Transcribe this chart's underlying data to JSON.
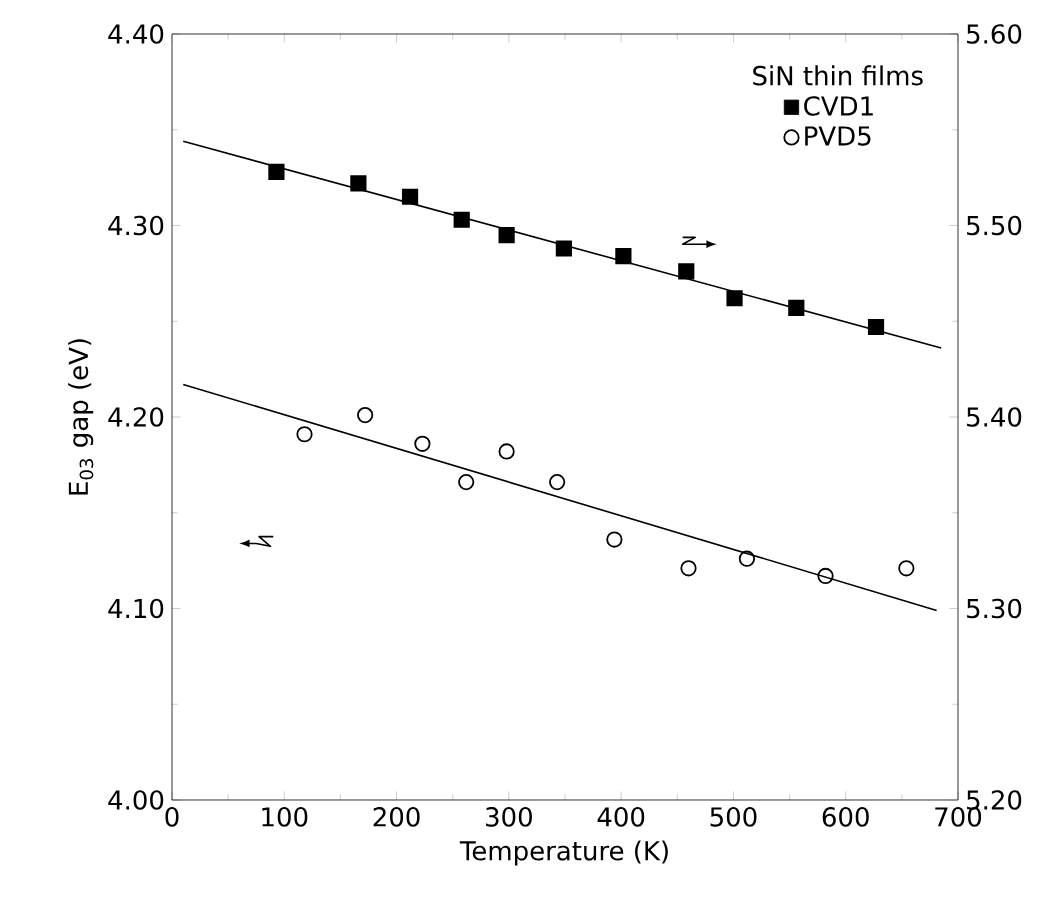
{
  "chart_data": {
    "type": "scatter",
    "xlabel": "Temperature (K)",
    "ylabel": "E$_{03}$ gap (eV)",
    "legend_title": "SiN thin films",
    "legend": "top right",
    "xlim": [
      0,
      700
    ],
    "xticks": [
      0,
      100,
      200,
      300,
      400,
      500,
      600,
      700
    ],
    "ylim": [
      4.0,
      4.4
    ],
    "yticks": [
      {
        "value": 4.0,
        "label": "4.00"
      },
      {
        "value": 4.1,
        "label": "4.10"
      },
      {
        "value": 4.2,
        "label": "4.20"
      },
      {
        "value": 4.3,
        "label": "4.30"
      },
      {
        "value": 4.4,
        "label": "4.40"
      }
    ],
    "y2lim": [
      5.2,
      5.6
    ],
    "y2ticks": [
      {
        "value": 5.2,
        "label": "5.20"
      },
      {
        "value": 5.3,
        "label": "5.30"
      },
      {
        "value": 5.4,
        "label": "5.40"
      },
      {
        "value": 5.5,
        "label": "5.50"
      },
      {
        "value": 5.6,
        "label": "5.60"
      }
    ],
    "series": [
      {
        "name": "CVD1",
        "axis": "y2",
        "marker": "square",
        "color": "#000000",
        "x": [
          93,
          166,
          212,
          258,
          298,
          349,
          402,
          458,
          501,
          556,
          627
        ],
        "values": [
          5.528,
          5.522,
          5.515,
          5.503,
          5.495,
          5.488,
          5.484,
          5.476,
          5.462,
          5.457,
          5.447
        ]
      },
      {
        "name": "PVD5",
        "marker": "circle",
        "color": "#000000",
        "x": [
          118,
          172,
          223,
          262,
          298,
          343,
          394,
          460,
          512,
          582,
          654
        ],
        "values": [
          4.191,
          4.201,
          4.186,
          4.166,
          4.182,
          4.166,
          4.136,
          4.121,
          4.126,
          4.117,
          4.121
        ]
      },
      {
        "type": "line",
        "axis": "y2",
        "color": "#000000",
        "x": [
          10,
          685
        ],
        "values": [
          5.544,
          5.436
        ]
      },
      {
        "type": "line",
        "color": "#000000",
        "x": [
          10,
          681
        ],
        "values": [
          4.217,
          4.099
        ]
      }
    ]
  }
}
